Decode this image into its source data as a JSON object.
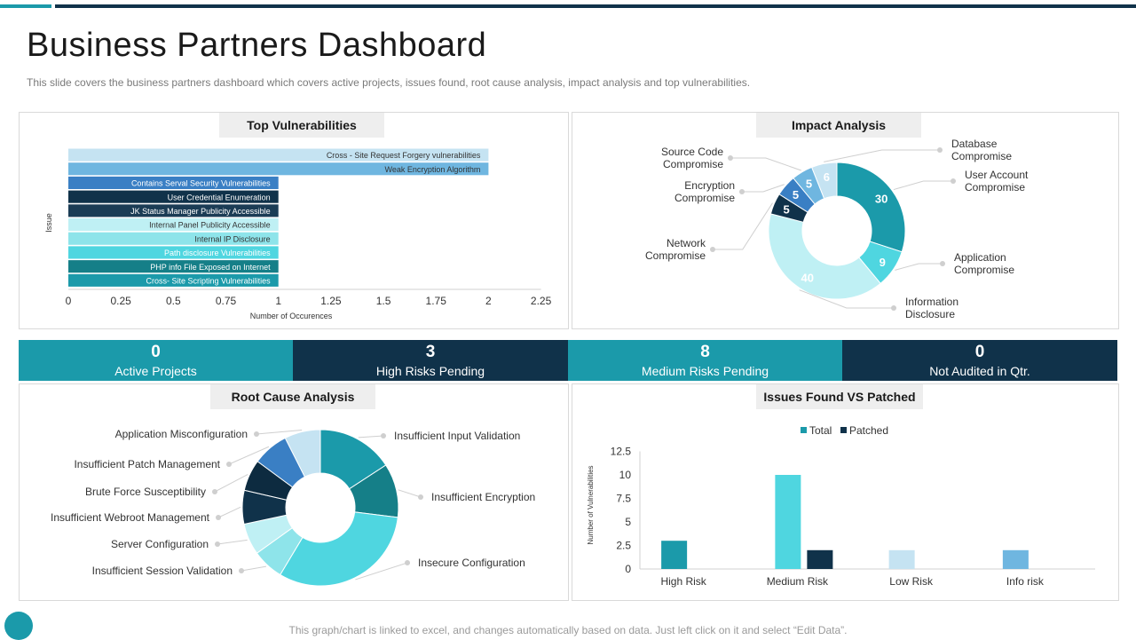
{
  "page": {
    "title": "Business Partners Dashboard",
    "subtitle": "This slide covers the business partners dashboard which covers active projects, issues found, root cause analysis, impact analysis and top vulnerabilities.",
    "footer": "This graph/chart is linked to excel, and changes automatically based on data. Just left click on it and select “Edit Data”."
  },
  "panels": {
    "vulnerabilities": "Top Vulnerabilities",
    "impact": "Impact Analysis",
    "root_cause": "Root Cause Analysis",
    "issues": "Issues Found VS Patched"
  },
  "kpis": [
    {
      "value": "0",
      "label": "Active Projects",
      "color": "#1b9aaa"
    },
    {
      "value": "3",
      "label": "High Risks Pending",
      "color": "#10324a"
    },
    {
      "value": "8",
      "label": "Medium Risks Pending",
      "color": "#1b9aaa"
    },
    {
      "value": "0",
      "label": "Not Audited in Qtr.",
      "color": "#10324a"
    }
  ],
  "chart_data": [
    {
      "type": "bar",
      "orientation": "horizontal",
      "title": "Top Vulnerabilities",
      "xlabel": "Number of Occurences",
      "ylabel": "Issue",
      "xlim": [
        0,
        2.25
      ],
      "ticks": [
        "0",
        "0.25",
        "0.5",
        "0.75",
        "1",
        "1.25",
        "1.5",
        "1.75",
        "2",
        "2.25"
      ],
      "categories": [
        "Cross - Site Request Forgery vulnerabilities",
        "Weak Encryption Algorithm",
        "Contains Serval Security Vulnerabilities",
        "User Credential Enumeration",
        "JK Status Manager Publicity Accessible",
        "Internal Panel Publicity Accessible",
        "Internal IP Disclosure",
        "Path disclosure Vulnerabilities",
        "PHP info File Exposed on Internet",
        "Cross- Site Scripting Vulnerabilities"
      ],
      "values": [
        2,
        2,
        1,
        1,
        1,
        1,
        1,
        1,
        1,
        1
      ],
      "colors": [
        "#c5e3f2",
        "#6fb6e0",
        "#3a7fc4",
        "#10324a",
        "#1b3c55",
        "#bff0f4",
        "#8ee4ea",
        "#4fd6e0",
        "#157f88",
        "#1b9aaa"
      ],
      "text_colors": [
        "#333333",
        "#333333",
        "#ffffff",
        "#ffffff",
        "#ffffff",
        "#333333",
        "#333333",
        "#ffffff",
        "#ffffff",
        "#ffffff"
      ]
    },
    {
      "type": "pie",
      "style": "donut",
      "title": "Impact Analysis",
      "categories": [
        "User Account Compromise",
        "Application Compromise",
        "Information Disclosure",
        "Network Compromise",
        "Encryption Compromise",
        "Source Code Compromise",
        "Database Compromise"
      ],
      "values": [
        30,
        9,
        40,
        5,
        5,
        5,
        6
      ],
      "colors": [
        "#1b9aaa",
        "#4fd6e0",
        "#bff0f4",
        "#10324a",
        "#3a7fc4",
        "#6fb6e0",
        "#c5e3f2"
      ]
    },
    {
      "type": "pie",
      "style": "donut",
      "title": "Root Cause Analysis",
      "categories": [
        "Insufficient Input Validation",
        "Insufficient Encryption",
        "Insecure Configuration",
        "Insufficient Session Validation",
        "Server Configuration",
        "Insufficient Webroot Management",
        "Brute Force Susceptibility",
        "Insufficient Patch Management",
        "Application Misconfiguration"
      ],
      "values": [
        17,
        12,
        34,
        7,
        7,
        7.5,
        7,
        8,
        8
      ],
      "colors": [
        "#1b9aaa",
        "#157f88",
        "#4fd6e0",
        "#8ee4ea",
        "#bff0f4",
        "#10324a",
        "#0d2b40",
        "#3a7fc4",
        "#c5e3f2"
      ]
    },
    {
      "type": "bar",
      "title": "Issues Found VS Patched",
      "ylabel": "Number of Vulnerabilities",
      "ylim": [
        0,
        12.5
      ],
      "ticks": [
        "0",
        "2.5",
        "5",
        "7.5",
        "10",
        "12.5"
      ],
      "categories": [
        "High Risk",
        "Medium Risk",
        "Low Risk",
        "Info risk"
      ],
      "series": [
        {
          "name": "Total",
          "values": [
            3,
            10,
            2,
            2
          ],
          "colors": [
            "#1b9aaa",
            "#4fd6e0",
            "#c5e3f2",
            "#6fb6e0"
          ],
          "legend_color": "#1b9aaa"
        },
        {
          "name": "Patched",
          "values": [
            0,
            2,
            0,
            0
          ],
          "colors": [
            "#10324a",
            "#10324a",
            "#10324a",
            "#10324a"
          ],
          "legend_color": "#10324a"
        }
      ]
    }
  ]
}
